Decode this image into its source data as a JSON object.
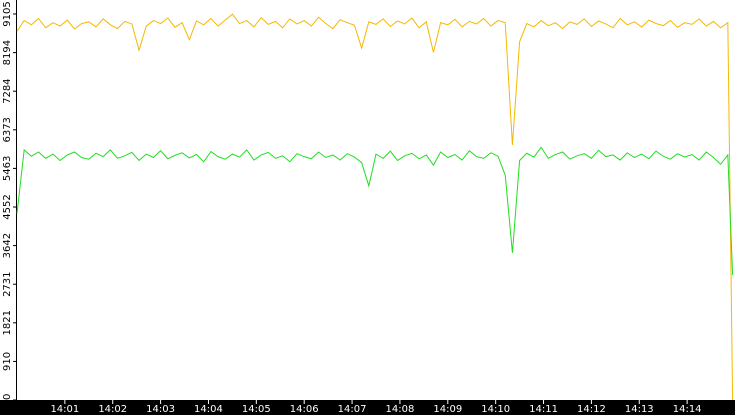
{
  "chart_data": {
    "type": "line",
    "x": [
      840,
      840.15,
      840.3,
      840.45,
      840.6,
      840.75,
      840.9,
      841.05,
      841.2,
      841.35,
      841.5,
      841.65,
      841.8,
      841.95,
      842.1,
      842.25,
      842.4,
      842.55,
      842.7,
      842.85,
      843,
      843.15,
      843.3,
      843.45,
      843.6,
      843.75,
      843.9,
      844.05,
      844.2,
      844.35,
      844.5,
      844.65,
      844.8,
      844.95,
      845.1,
      845.25,
      845.4,
      845.55,
      845.7,
      845.85,
      846,
      846.15,
      846.3,
      846.45,
      846.6,
      846.75,
      846.9,
      847.05,
      847.2,
      847.35,
      847.5,
      847.65,
      847.8,
      847.95,
      848.1,
      848.25,
      848.4,
      848.55,
      848.7,
      848.85,
      849,
      849.15,
      849.3,
      849.45,
      849.6,
      849.75,
      849.9,
      850.05,
      850.2,
      850.35,
      850.5,
      850.65,
      850.8,
      850.95,
      851.1,
      851.25,
      851.4,
      851.55,
      851.7,
      851.85,
      852,
      852.15,
      852.3,
      852.45,
      852.6,
      852.75,
      852.9,
      853.05,
      853.2,
      853.35,
      853.5,
      853.65,
      853.8,
      853.95,
      854.1,
      854.25,
      854.4,
      854.55,
      854.7,
      854.85,
      854.95
    ],
    "series": [
      {
        "color": "#f5b800",
        "values": [
          8700,
          8950,
          8850,
          9000,
          8780,
          8900,
          8820,
          8960,
          8750,
          8880,
          8920,
          8800,
          8990,
          8850,
          8760,
          8930,
          8870,
          8250,
          8820,
          8950,
          8880,
          9010,
          8790,
          8900,
          8500,
          8940,
          8850,
          9000,
          8820,
          8960,
          9100,
          8880,
          8950,
          8800,
          9020,
          8860,
          8930,
          8780,
          8990,
          8870,
          8950,
          8820,
          9030,
          8880,
          8760,
          8970,
          8900,
          8840,
          8300,
          8920,
          8860,
          8990,
          8810,
          8940,
          8870,
          9010,
          8780,
          8920,
          8200,
          8900,
          8850,
          8980,
          8800,
          8930,
          8870,
          9000,
          8820,
          8950,
          8900,
          6015,
          8450,
          8880,
          8800,
          8950,
          8830,
          8900,
          8760,
          8920,
          8860,
          8990,
          8810,
          8940,
          8870,
          8780,
          9000,
          8850,
          8920,
          8800,
          8960,
          8880,
          8830,
          8950,
          8790,
          8900,
          8860,
          8990,
          8820,
          8930,
          8780,
          8900,
          0
        ]
      },
      {
        "color": "#22dd22",
        "values": [
          4400,
          5900,
          5750,
          5850,
          5700,
          5800,
          5650,
          5780,
          5850,
          5720,
          5680,
          5820,
          5740,
          5900,
          5700,
          5760,
          5840,
          5650,
          5800,
          5720,
          5880,
          5690,
          5770,
          5830,
          5710,
          5790,
          5620,
          5860,
          5740,
          5680,
          5800,
          5730,
          5900,
          5660,
          5780,
          5840,
          5700,
          5760,
          5620,
          5810,
          5740,
          5690,
          5850,
          5720,
          5780,
          5660,
          5810,
          5730,
          5600,
          5050,
          5800,
          5700,
          5870,
          5650,
          5760,
          5820,
          5690,
          5780,
          5540,
          5850,
          5720,
          5790,
          5660,
          5880,
          5740,
          5700,
          5830,
          5750,
          5300,
          3470,
          5650,
          5820,
          5730,
          5960,
          5700,
          5790,
          5850,
          5680,
          5760,
          5810,
          5700,
          5890,
          5740,
          5780,
          5660,
          5830,
          5720,
          5800,
          5690,
          5870,
          5750,
          5680,
          5810,
          5730,
          5790,
          5660,
          5850,
          5720,
          5560,
          5780,
          2950
        ]
      }
    ],
    "xlim": [
      840,
      855
    ],
    "xticks": [
      {
        "value": 841,
        "label": "14:01"
      },
      {
        "value": 842,
        "label": "14:02"
      },
      {
        "value": 843,
        "label": "14:03"
      },
      {
        "value": 844,
        "label": "14:04"
      },
      {
        "value": 845,
        "label": "14:05"
      },
      {
        "value": 846,
        "label": "14:06"
      },
      {
        "value": 847,
        "label": "14:07"
      },
      {
        "value": 848,
        "label": "14:08"
      },
      {
        "value": 849,
        "label": "14:09"
      },
      {
        "value": 850,
        "label": "14:10"
      },
      {
        "value": 851,
        "label": "14:11"
      },
      {
        "value": 852,
        "label": "14:12"
      },
      {
        "value": 853,
        "label": "14:13"
      },
      {
        "value": 854,
        "label": "14:14"
      }
    ],
    "ylim": [
      0,
      9435
    ],
    "yticks": [
      0,
      910,
      1821,
      2731,
      3642,
      4552,
      5463,
      6373,
      7284,
      8194,
      9105
    ]
  }
}
